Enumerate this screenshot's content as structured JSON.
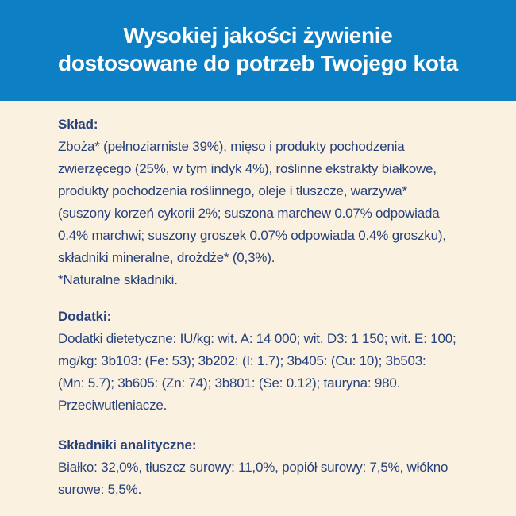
{
  "colors": {
    "header-bg": "#0d80c5",
    "header-text": "#ffffff",
    "page-bg": "#fbf1e0",
    "body-text": "#27427b"
  },
  "header": {
    "lines": [
      "Wysokiej jakości żywienie",
      "dostosowane do potrzeb Twojego kota"
    ]
  },
  "sections": [
    {
      "heading": "Skład:",
      "lines": [
        "Zboża* (pełnoziarniste 39%), mięso i produkty pochodzenia",
        "zwierzęcego (25%, w tym indyk 4%), roślinne ekstrakty białkowe,",
        "produkty pochodzenia roślinnego, oleje i tłuszcze, warzywa*",
        "(suszony korzeń cykorii 2%; suszona marchew 0.07% odpowiada",
        "0.4% marchwi; suszony groszek 0.07% odpowiada 0.4% groszku),",
        "składniki mineralne, drożdże* (0,3%).",
        "*Naturalne składniki."
      ]
    },
    {
      "heading": "Dodatki:",
      "lines": [
        "Dodatki dietetyczne: IU/kg: wit. A: 14 000; wit. D3: 1 150; wit. E: 100;",
        "mg/kg: 3b103: (Fe: 53); 3b202: (I: 1.7); 3b405: (Cu: 10); 3b503:",
        "(Mn: 5.7); 3b605: (Zn: 74); 3b801: (Se: 0.12); tauryna: 980.",
        "Przeciwutleniacze."
      ]
    },
    {
      "heading": "Składniki analityczne:",
      "lines": [
        "Białko: 32,0%, tłuszcz surowy: 11,0%, popiół surowy: 7,5%, włókno",
        "surowe: 5,5%."
      ]
    }
  ]
}
